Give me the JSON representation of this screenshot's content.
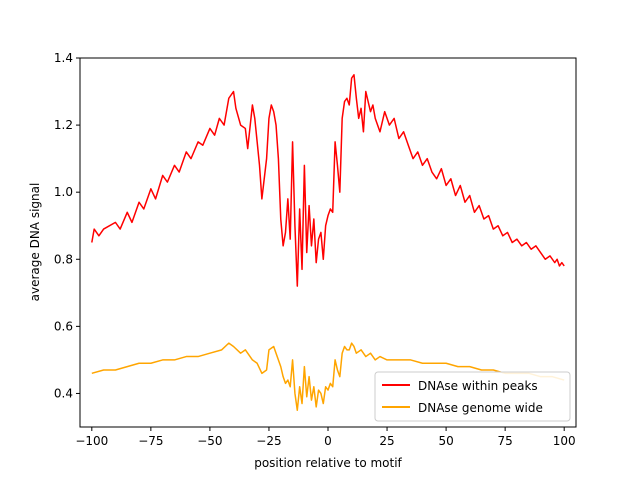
{
  "chart_data": {
    "type": "line",
    "title": "",
    "xlabel": "position relative to motif",
    "ylabel": "average DNA signal",
    "xlim": [
      -105,
      105
    ],
    "ylim": [
      0.3,
      1.4
    ],
    "xticks": [
      -100,
      -75,
      -50,
      -25,
      0,
      25,
      50,
      75,
      100
    ],
    "yticks": [
      0.4,
      0.6,
      0.8,
      1.0,
      1.2,
      1.4
    ],
    "ytick_labels": [
      "0.4",
      "0.6",
      "0.8",
      "1.0",
      "1.2",
      "1.4"
    ],
    "legend_position": "lower-right",
    "series": [
      {
        "name": "DNAse within peaks",
        "color": "#ff0000",
        "anchors": [
          [
            -100,
            0.85
          ],
          [
            -99,
            0.89
          ],
          [
            -97,
            0.87
          ],
          [
            -95,
            0.89
          ],
          [
            -90,
            0.91
          ],
          [
            -88,
            0.89
          ],
          [
            -85,
            0.94
          ],
          [
            -83,
            0.91
          ],
          [
            -80,
            0.97
          ],
          [
            -78,
            0.95
          ],
          [
            -75,
            1.01
          ],
          [
            -73,
            0.98
          ],
          [
            -70,
            1.05
          ],
          [
            -68,
            1.03
          ],
          [
            -65,
            1.08
          ],
          [
            -63,
            1.06
          ],
          [
            -60,
            1.12
          ],
          [
            -58,
            1.1
          ],
          [
            -55,
            1.15
          ],
          [
            -53,
            1.14
          ],
          [
            -50,
            1.19
          ],
          [
            -48,
            1.17
          ],
          [
            -46,
            1.22
          ],
          [
            -44,
            1.2
          ],
          [
            -42,
            1.28
          ],
          [
            -40,
            1.3
          ],
          [
            -39,
            1.25
          ],
          [
            -37,
            1.2
          ],
          [
            -35,
            1.19
          ],
          [
            -34,
            1.13
          ],
          [
            -32,
            1.26
          ],
          [
            -31,
            1.22
          ],
          [
            -30,
            1.15
          ],
          [
            -29,
            1.08
          ],
          [
            -28,
            0.98
          ],
          [
            -27,
            1.04
          ],
          [
            -26,
            1.1
          ],
          [
            -25,
            1.22
          ],
          [
            -24,
            1.26
          ],
          [
            -23,
            1.24
          ],
          [
            -22,
            1.2
          ],
          [
            -21,
            1.1
          ],
          [
            -20,
            0.92
          ],
          [
            -19,
            0.84
          ],
          [
            -18,
            0.88
          ],
          [
            -17,
            0.98
          ],
          [
            -16,
            0.86
          ],
          [
            -15,
            1.15
          ],
          [
            -14,
            0.9
          ],
          [
            -13,
            0.72
          ],
          [
            -12,
            0.95
          ],
          [
            -11,
            0.77
          ],
          [
            -10,
            1.08
          ],
          [
            -9,
            0.82
          ],
          [
            -8,
            0.96
          ],
          [
            -7,
            0.84
          ],
          [
            -6,
            0.92
          ],
          [
            -5,
            0.79
          ],
          [
            -4,
            0.86
          ],
          [
            -3,
            0.88
          ],
          [
            -2,
            0.8
          ],
          [
            -1,
            0.9
          ],
          [
            0,
            0.93
          ],
          [
            1,
            0.95
          ],
          [
            2,
            0.94
          ],
          [
            3,
            1.15
          ],
          [
            4,
            1.08
          ],
          [
            5,
            1.0
          ],
          [
            6,
            1.22
          ],
          [
            7,
            1.27
          ],
          [
            8,
            1.28
          ],
          [
            9,
            1.26
          ],
          [
            10,
            1.34
          ],
          [
            11,
            1.35
          ],
          [
            12,
            1.28
          ],
          [
            13,
            1.22
          ],
          [
            14,
            1.25
          ],
          [
            15,
            1.18
          ],
          [
            16,
            1.3
          ],
          [
            17,
            1.27
          ],
          [
            18,
            1.24
          ],
          [
            19,
            1.26
          ],
          [
            20,
            1.22
          ],
          [
            22,
            1.18
          ],
          [
            24,
            1.24
          ],
          [
            26,
            1.2
          ],
          [
            28,
            1.22
          ],
          [
            30,
            1.16
          ],
          [
            32,
            1.18
          ],
          [
            34,
            1.14
          ],
          [
            36,
            1.1
          ],
          [
            38,
            1.12
          ],
          [
            40,
            1.08
          ],
          [
            42,
            1.1
          ],
          [
            44,
            1.06
          ],
          [
            46,
            1.04
          ],
          [
            48,
            1.07
          ],
          [
            50,
            1.02
          ],
          [
            52,
            1.04
          ],
          [
            54,
            0.99
          ],
          [
            56,
            1.02
          ],
          [
            58,
            0.97
          ],
          [
            60,
            0.99
          ],
          [
            62,
            0.94
          ],
          [
            64,
            0.96
          ],
          [
            66,
            0.92
          ],
          [
            68,
            0.93
          ],
          [
            70,
            0.89
          ],
          [
            72,
            0.9
          ],
          [
            74,
            0.87
          ],
          [
            76,
            0.88
          ],
          [
            78,
            0.85
          ],
          [
            80,
            0.86
          ],
          [
            82,
            0.84
          ],
          [
            84,
            0.85
          ],
          [
            86,
            0.83
          ],
          [
            88,
            0.84
          ],
          [
            90,
            0.82
          ],
          [
            92,
            0.8
          ],
          [
            94,
            0.81
          ],
          [
            96,
            0.79
          ],
          [
            97,
            0.8
          ],
          [
            98,
            0.78
          ],
          [
            99,
            0.79
          ],
          [
            100,
            0.78
          ]
        ]
      },
      {
        "name": "DNAse genome wide",
        "color": "#ffa500",
        "anchors": [
          [
            -100,
            0.46
          ],
          [
            -95,
            0.47
          ],
          [
            -90,
            0.47
          ],
          [
            -85,
            0.48
          ],
          [
            -80,
            0.49
          ],
          [
            -75,
            0.49
          ],
          [
            -70,
            0.5
          ],
          [
            -65,
            0.5
          ],
          [
            -60,
            0.51
          ],
          [
            -55,
            0.51
          ],
          [
            -50,
            0.52
          ],
          [
            -45,
            0.53
          ],
          [
            -42,
            0.55
          ],
          [
            -40,
            0.54
          ],
          [
            -37,
            0.52
          ],
          [
            -35,
            0.53
          ],
          [
            -32,
            0.5
          ],
          [
            -30,
            0.49
          ],
          [
            -28,
            0.46
          ],
          [
            -26,
            0.47
          ],
          [
            -25,
            0.53
          ],
          [
            -23,
            0.54
          ],
          [
            -22,
            0.52
          ],
          [
            -20,
            0.48
          ],
          [
            -19,
            0.45
          ],
          [
            -18,
            0.43
          ],
          [
            -17,
            0.44
          ],
          [
            -16,
            0.42
          ],
          [
            -15,
            0.5
          ],
          [
            -14,
            0.4
          ],
          [
            -13,
            0.35
          ],
          [
            -12,
            0.42
          ],
          [
            -11,
            0.37
          ],
          [
            -10,
            0.48
          ],
          [
            -9,
            0.39
          ],
          [
            -8,
            0.45
          ],
          [
            -7,
            0.38
          ],
          [
            -6,
            0.42
          ],
          [
            -5,
            0.36
          ],
          [
            -4,
            0.41
          ],
          [
            -3,
            0.4
          ],
          [
            -2,
            0.37
          ],
          [
            -1,
            0.42
          ],
          [
            0,
            0.41
          ],
          [
            1,
            0.43
          ],
          [
            2,
            0.42
          ],
          [
            3,
            0.5
          ],
          [
            4,
            0.47
          ],
          [
            5,
            0.45
          ],
          [
            6,
            0.52
          ],
          [
            7,
            0.54
          ],
          [
            8,
            0.53
          ],
          [
            9,
            0.53
          ],
          [
            10,
            0.55
          ],
          [
            11,
            0.54
          ],
          [
            12,
            0.52
          ],
          [
            14,
            0.53
          ],
          [
            16,
            0.51
          ],
          [
            18,
            0.52
          ],
          [
            20,
            0.5
          ],
          [
            22,
            0.51
          ],
          [
            25,
            0.5
          ],
          [
            30,
            0.5
          ],
          [
            35,
            0.5
          ],
          [
            40,
            0.49
          ],
          [
            45,
            0.49
          ],
          [
            50,
            0.49
          ],
          [
            55,
            0.48
          ],
          [
            60,
            0.48
          ],
          [
            65,
            0.47
          ],
          [
            70,
            0.47
          ],
          [
            75,
            0.46
          ],
          [
            80,
            0.46
          ],
          [
            85,
            0.46
          ],
          [
            90,
            0.45
          ],
          [
            95,
            0.45
          ],
          [
            100,
            0.44
          ]
        ]
      }
    ]
  }
}
